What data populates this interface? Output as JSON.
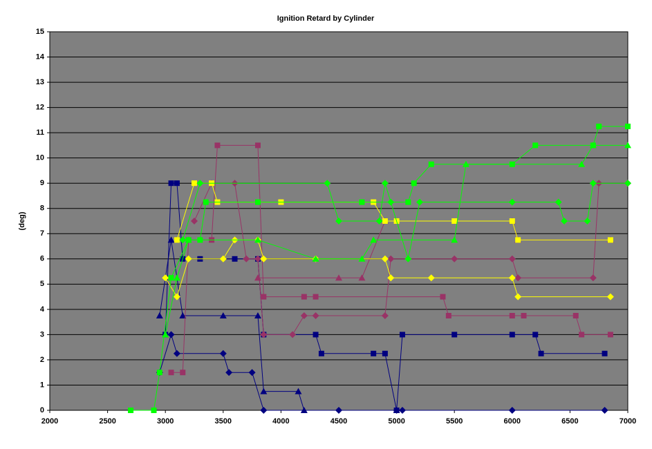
{
  "chart_data": {
    "type": "line",
    "title": "Ignition Retard by Cylinder",
    "y_label": "(deg)",
    "xlim": [
      2000,
      7000
    ],
    "xticks": [
      2000,
      2500,
      3000,
      3500,
      4000,
      4500,
      5000,
      5500,
      6000,
      6500,
      7000
    ],
    "ylim": [
      0,
      15
    ],
    "yticks": [
      0,
      1,
      2,
      3,
      4,
      5,
      6,
      7,
      8,
      9,
      10,
      11,
      12,
      13,
      14,
      15
    ],
    "grid": true,
    "series": [
      {
        "color": "#000080",
        "marker": "square",
        "x": [
          3000,
          3050,
          3100,
          3150,
          3300,
          3600,
          3800,
          3850,
          4300,
          4350,
          4800,
          4900,
          5000,
          5050,
          5500,
          6000,
          6200,
          6250,
          6800
        ],
        "values": [
          3,
          9,
          9,
          6,
          6,
          6,
          6,
          3,
          3,
          2.25,
          2.25,
          2.25,
          0,
          3,
          3,
          3,
          3,
          2.25,
          2.25
        ]
      },
      {
        "color": "#000080",
        "marker": "triangle",
        "x": [
          2950,
          3050,
          3150,
          3500,
          3800,
          3850,
          4150,
          4200,
          5000
        ],
        "values": [
          3.75,
          6.75,
          3.75,
          3.75,
          3.75,
          0.75,
          0.75,
          0,
          0
        ]
      },
      {
        "color": "#000080",
        "marker": "diamond",
        "x": [
          2950,
          3050,
          3100,
          3500,
          3550,
          3750,
          3850,
          4500,
          5000,
          5050,
          6000,
          6800
        ],
        "values": [
          1.5,
          3,
          2.25,
          2.25,
          1.5,
          1.5,
          0,
          0,
          0,
          0,
          0,
          0
        ]
      },
      {
        "color": "#993366",
        "marker": "square",
        "x": [
          3050,
          3150,
          3200,
          3400,
          3450,
          3800,
          3850,
          4200,
          4300,
          5400,
          5450,
          6000,
          6100,
          6550,
          6600,
          6850
        ],
        "values": [
          1.5,
          1.5,
          6.75,
          6.75,
          10.5,
          10.5,
          4.5,
          4.5,
          4.5,
          4.5,
          3.75,
          3.75,
          3.75,
          3.75,
          3,
          3
        ]
      },
      {
        "color": "#993366",
        "marker": "diamond",
        "x": [
          3250,
          3400,
          3600,
          3700,
          3800,
          3850,
          4100,
          4200,
          4300,
          4900,
          4950,
          5500,
          6000,
          6050,
          6700,
          6750,
          7000
        ],
        "values": [
          7.5,
          9,
          9,
          6,
          6,
          3,
          3,
          3.75,
          3.75,
          3.75,
          6,
          6,
          6,
          5.25,
          5.25,
          9,
          9
        ]
      },
      {
        "color": "#993366",
        "marker": "triangle",
        "x": [
          3800,
          4500,
          4700,
          4900,
          6000,
          6050,
          6850
        ],
        "values": [
          5.25,
          5.25,
          5.25,
          7.5,
          7.5,
          6.75,
          6.75
        ]
      },
      {
        "color": "#ffff00",
        "marker": "square",
        "x": [
          3100,
          3250,
          3400,
          3450,
          4000,
          4800,
          4900,
          5000,
          5500,
          6000,
          6050,
          6850
        ],
        "values": [
          6.75,
          9,
          9,
          8.25,
          8.25,
          8.25,
          7.5,
          7.5,
          7.5,
          7.5,
          6.75,
          6.75
        ]
      },
      {
        "color": "#ffff00",
        "marker": "diamond",
        "x": [
          3000,
          3100,
          3200,
          3500,
          3600,
          3800,
          3850,
          4300,
          4900,
          4950,
          5300,
          6000,
          6050,
          6850
        ],
        "values": [
          5.25,
          4.5,
          6,
          6,
          6.75,
          6.75,
          6,
          6,
          6,
          5.25,
          5.25,
          5.25,
          4.5,
          4.5
        ]
      },
      {
        "color": "#00ff00",
        "marker": "square",
        "x": [
          2700,
          2900,
          2950,
          3050,
          3200,
          3300,
          3350,
          3800,
          4700,
          5100,
          5150,
          5300,
          6000,
          6200,
          6700,
          6750,
          7000
        ],
        "values": [
          0,
          0,
          1.5,
          5.25,
          6.75,
          6.75,
          8.25,
          8.25,
          8.25,
          8.25,
          9,
          9.75,
          9.75,
          10.5,
          10.5,
          11.25,
          11.25
        ]
      },
      {
        "color": "#00ff00",
        "marker": "diamond",
        "x": [
          3150,
          3300,
          4400,
          4500,
          4850,
          4900,
          4950,
          5100,
          5200,
          6000,
          6400,
          6450,
          6650,
          6700,
          7000
        ],
        "values": [
          6.75,
          9,
          9,
          7.5,
          7.5,
          9,
          8.25,
          6,
          8.25,
          8.25,
          8.25,
          7.5,
          7.5,
          9,
          9
        ]
      },
      {
        "color": "#00ff00",
        "marker": "triangle",
        "x": [
          3000,
          3100,
          3200,
          3800,
          4300,
          4700,
          4800,
          5500,
          5600,
          6600,
          6700,
          7000
        ],
        "values": [
          3,
          5.25,
          6.75,
          6.75,
          6,
          6,
          6.75,
          6.75,
          9.75,
          9.75,
          10.5,
          10.5
        ]
      }
    ]
  }
}
